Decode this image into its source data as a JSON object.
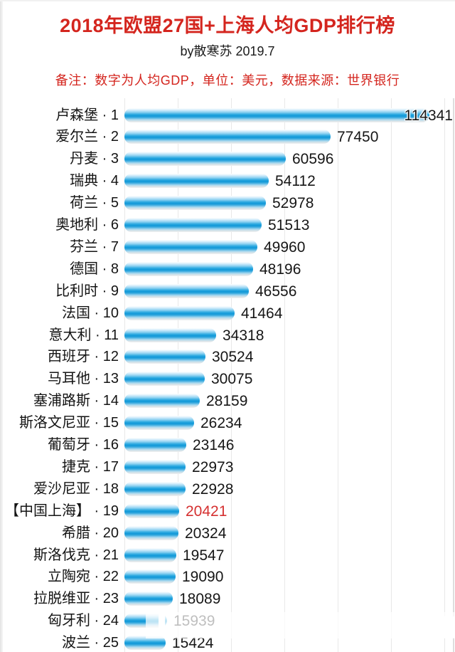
{
  "header": {
    "title": "2018年欧盟27国+上海人均GDP排行榜",
    "subtitle": "by散寒苏 2019.7",
    "note": "备注：数字为人均GDP，单位：美元，数据来源：世界银行"
  },
  "colors": {
    "title_red": "#d4251e",
    "note_red": "#d4251e",
    "highlight_value_red": "#d53030",
    "text_dark": "#141414",
    "bar_core_blue": "#0f97d7",
    "gridline_gray": "#e8e8e8"
  },
  "label_separator": " · ",
  "chart_data": {
    "type": "bar",
    "orientation": "horizontal",
    "title": "2018年欧盟27国+上海人均GDP排行榜",
    "unit": "美元",
    "source": "世界银行",
    "axis": {
      "min": 0,
      "max": 123000,
      "gridline_step": 20000,
      "tick_labels_visible": false,
      "grid": true
    },
    "legend": "none",
    "rows": [
      {
        "name": "卢森堡",
        "rank": 1,
        "value": 114341,
        "value_inside": true
      },
      {
        "name": "爱尔兰",
        "rank": 2,
        "value": 77450
      },
      {
        "name": "丹麦",
        "rank": 3,
        "value": 60596
      },
      {
        "name": "瑞典",
        "rank": 4,
        "value": 54112
      },
      {
        "name": "荷兰",
        "rank": 5,
        "value": 52978
      },
      {
        "name": "奥地利",
        "rank": 6,
        "value": 51513
      },
      {
        "name": "芬兰",
        "rank": 7,
        "value": 49960
      },
      {
        "name": "德国",
        "rank": 8,
        "value": 48196
      },
      {
        "name": "比利时",
        "rank": 9,
        "value": 46556
      },
      {
        "name": "法国",
        "rank": 10,
        "value": 41464
      },
      {
        "name": "意大利",
        "rank": 11,
        "value": 34318
      },
      {
        "name": "西班牙",
        "rank": 12,
        "value": 30524
      },
      {
        "name": "马耳他",
        "rank": 13,
        "value": 30075
      },
      {
        "name": "塞浦路斯",
        "rank": 14,
        "value": 28159
      },
      {
        "name": "斯洛文尼亚",
        "rank": 15,
        "value": 26234
      },
      {
        "name": "葡萄牙",
        "rank": 16,
        "value": 23146
      },
      {
        "name": "捷克",
        "rank": 17,
        "value": 22973
      },
      {
        "name": "爱沙尼亚",
        "rank": 18,
        "value": 22928
      },
      {
        "name": "【中国上海】",
        "rank": 19,
        "value": 20421,
        "highlight": true
      },
      {
        "name": "希腊",
        "rank": 20,
        "value": 20324
      },
      {
        "name": "斯洛伐克",
        "rank": 21,
        "value": 19547
      },
      {
        "name": "立陶宛",
        "rank": 22,
        "value": 19090
      },
      {
        "name": "拉脱维亚",
        "rank": 23,
        "value": 18089
      },
      {
        "name": "匈牙利",
        "rank": 24,
        "value": 15939,
        "obscured": true
      },
      {
        "name": "波兰",
        "rank": 25,
        "value": 15424
      }
    ]
  }
}
